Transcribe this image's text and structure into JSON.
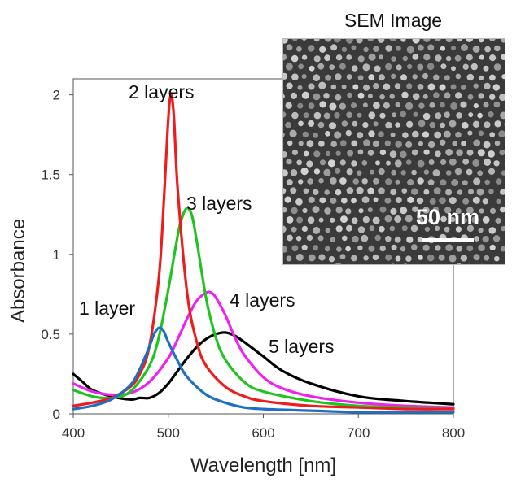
{
  "chart_data": {
    "type": "line",
    "xlabel": "Wavelength [nm]",
    "ylabel": "Absorbance",
    "xlim": [
      400,
      800
    ],
    "ylim": [
      0,
      2.1
    ],
    "xticks": [
      400,
      500,
      600,
      700,
      800
    ],
    "yticks": [
      0,
      0.5,
      1,
      1.5,
      2
    ],
    "grid": false,
    "series": [
      {
        "name": "1 layer",
        "color": "#1f6fc4",
        "x": [
          400,
          420,
          440,
          460,
          470,
          480,
          485,
          490,
          495,
          500,
          510,
          520,
          540,
          560,
          580,
          600,
          650,
          700,
          750,
          800
        ],
        "y": [
          0.03,
          0.05,
          0.09,
          0.18,
          0.28,
          0.42,
          0.5,
          0.54,
          0.52,
          0.45,
          0.33,
          0.23,
          0.12,
          0.07,
          0.04,
          0.03,
          0.02,
          0.01,
          0.01,
          0.01
        ]
      },
      {
        "name": "2 layers",
        "color": "#ee1c1c",
        "x": [
          400,
          420,
          440,
          460,
          470,
          480,
          490,
          495,
          500,
          503,
          506,
          510,
          520,
          530,
          540,
          560,
          580,
          600,
          650,
          700,
          750,
          800
        ],
        "y": [
          0.05,
          0.07,
          0.1,
          0.17,
          0.25,
          0.42,
          0.85,
          1.3,
          1.85,
          2.0,
          1.85,
          1.4,
          0.75,
          0.45,
          0.3,
          0.17,
          0.11,
          0.08,
          0.05,
          0.04,
          0.03,
          0.03
        ]
      },
      {
        "name": "3 layers",
        "color": "#1fc41f",
        "x": [
          400,
          420,
          440,
          460,
          480,
          490,
          500,
          510,
          515,
          520,
          525,
          530,
          540,
          550,
          560,
          580,
          600,
          650,
          700,
          750,
          800
        ],
        "y": [
          0.15,
          0.11,
          0.1,
          0.14,
          0.3,
          0.48,
          0.78,
          1.12,
          1.24,
          1.29,
          1.24,
          1.08,
          0.72,
          0.48,
          0.34,
          0.2,
          0.14,
          0.08,
          0.05,
          0.04,
          0.03
        ]
      },
      {
        "name": "4 layers",
        "color": "#f020f0",
        "x": [
          400,
          420,
          440,
          460,
          480,
          500,
          510,
          520,
          530,
          540,
          545,
          550,
          560,
          570,
          580,
          600,
          620,
          650,
          700,
          750,
          800
        ],
        "y": [
          0.19,
          0.14,
          0.12,
          0.13,
          0.2,
          0.35,
          0.47,
          0.6,
          0.71,
          0.76,
          0.76,
          0.73,
          0.62,
          0.48,
          0.37,
          0.23,
          0.16,
          0.11,
          0.07,
          0.05,
          0.04
        ]
      },
      {
        "name": "5 layers",
        "color": "#000000",
        "x": [
          400,
          410,
          420,
          440,
          460,
          470,
          480,
          490,
          500,
          510,
          520,
          530,
          540,
          550,
          560,
          570,
          580,
          600,
          620,
          650,
          700,
          750,
          800
        ],
        "y": [
          0.25,
          0.2,
          0.15,
          0.11,
          0.09,
          0.1,
          0.1,
          0.13,
          0.19,
          0.27,
          0.35,
          0.42,
          0.47,
          0.5,
          0.51,
          0.49,
          0.45,
          0.36,
          0.27,
          0.19,
          0.11,
          0.08,
          0.06
        ]
      }
    ]
  },
  "inset": {
    "title": "SEM Image",
    "scale_label": "50 nm"
  }
}
